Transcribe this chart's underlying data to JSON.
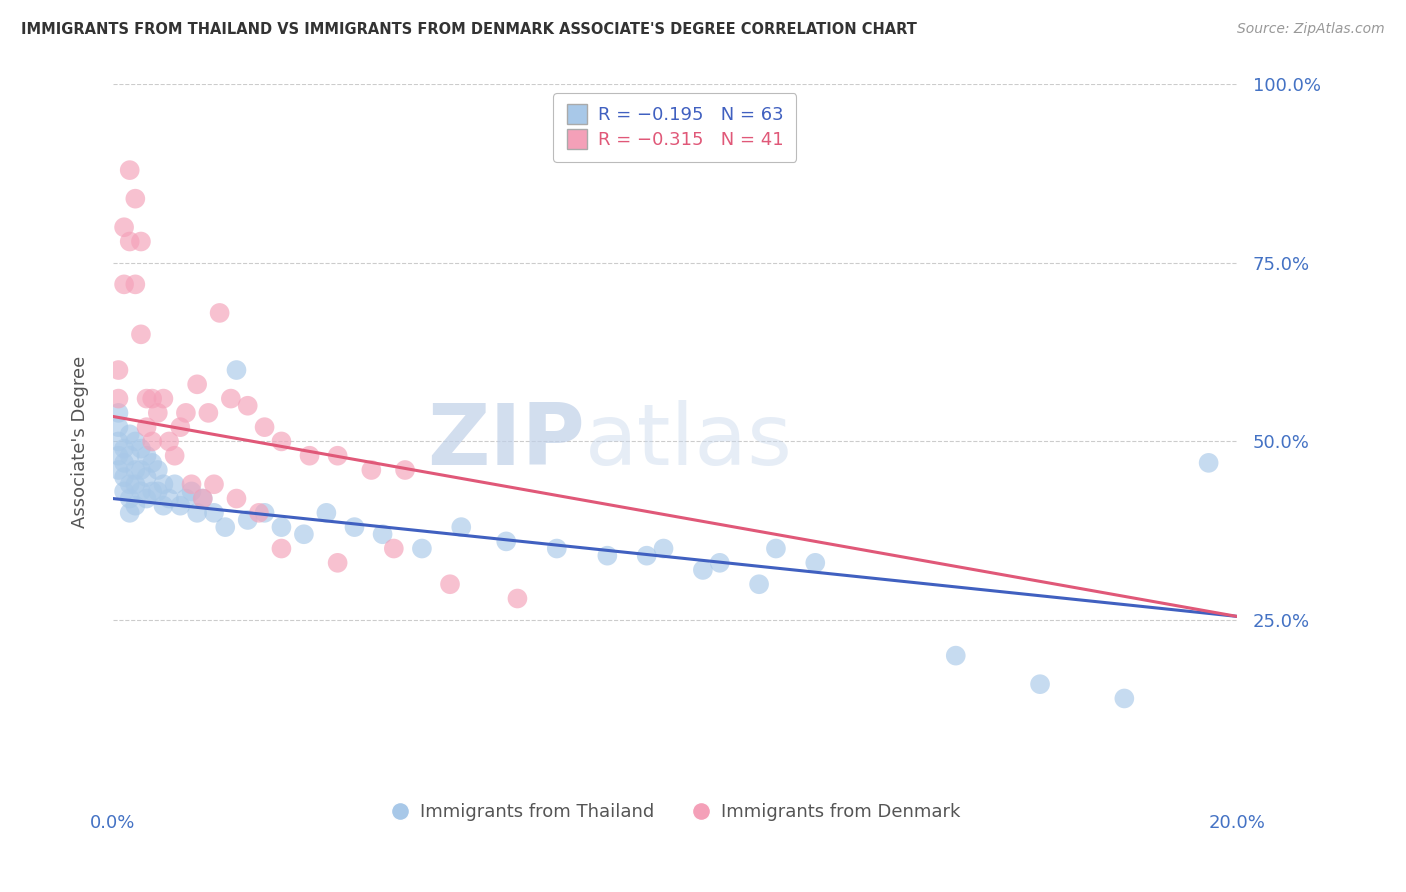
{
  "title": "IMMIGRANTS FROM THAILAND VS IMMIGRANTS FROM DENMARK ASSOCIATE'S DEGREE CORRELATION CHART",
  "source_text": "Source: ZipAtlas.com",
  "ylabel": "Associate's Degree",
  "xmin": 0.0,
  "xmax": 0.2,
  "ymin": 0.0,
  "ymax": 1.0,
  "yticks": [
    0.25,
    0.5,
    0.75,
    1.0
  ],
  "ytick_labels": [
    "25.0%",
    "50.0%",
    "75.0%",
    "100.0%"
  ],
  "xticks": [
    0.0,
    0.04,
    0.08,
    0.12,
    0.16,
    0.2
  ],
  "watermark_zip": "ZIP",
  "watermark_atlas": "atlas",
  "blue_color": "#a8c8e8",
  "pink_color": "#f4a0b8",
  "blue_line_color": "#4060c0",
  "pink_line_color": "#e05878",
  "title_color": "#333333",
  "axis_label_color": "#555555",
  "tick_label_color": "#4472c4",
  "grid_color": "#cccccc",
  "background_color": "#ffffff",
  "blue_line_x0": 0.0,
  "blue_line_x1": 0.2,
  "blue_line_y0": 0.42,
  "blue_line_y1": 0.255,
  "pink_line_x0": 0.0,
  "pink_line_x1": 0.2,
  "pink_line_y0": 0.535,
  "pink_line_y1": 0.255,
  "thailand_x": [
    0.001,
    0.001,
    0.001,
    0.001,
    0.001,
    0.002,
    0.002,
    0.002,
    0.002,
    0.003,
    0.003,
    0.003,
    0.003,
    0.003,
    0.004,
    0.004,
    0.004,
    0.004,
    0.005,
    0.005,
    0.005,
    0.006,
    0.006,
    0.006,
    0.007,
    0.007,
    0.008,
    0.008,
    0.009,
    0.009,
    0.01,
    0.011,
    0.012,
    0.013,
    0.014,
    0.015,
    0.016,
    0.018,
    0.02,
    0.022,
    0.024,
    0.027,
    0.03,
    0.034,
    0.038,
    0.043,
    0.048,
    0.055,
    0.062,
    0.07,
    0.079,
    0.088,
    0.098,
    0.108,
    0.118,
    0.095,
    0.105,
    0.115,
    0.125,
    0.15,
    0.165,
    0.18,
    0.195
  ],
  "thailand_y": [
    0.5,
    0.48,
    0.46,
    0.52,
    0.54,
    0.49,
    0.47,
    0.45,
    0.43,
    0.51,
    0.48,
    0.44,
    0.42,
    0.4,
    0.5,
    0.46,
    0.44,
    0.41,
    0.49,
    0.46,
    0.43,
    0.48,
    0.45,
    0.42,
    0.47,
    0.43,
    0.46,
    0.43,
    0.44,
    0.41,
    0.42,
    0.44,
    0.41,
    0.42,
    0.43,
    0.4,
    0.42,
    0.4,
    0.38,
    0.6,
    0.39,
    0.4,
    0.38,
    0.37,
    0.4,
    0.38,
    0.37,
    0.35,
    0.38,
    0.36,
    0.35,
    0.34,
    0.35,
    0.33,
    0.35,
    0.34,
    0.32,
    0.3,
    0.33,
    0.2,
    0.16,
    0.14,
    0.47
  ],
  "denmark_x": [
    0.001,
    0.001,
    0.002,
    0.002,
    0.003,
    0.003,
    0.004,
    0.004,
    0.005,
    0.005,
    0.006,
    0.006,
    0.007,
    0.007,
    0.008,
    0.009,
    0.01,
    0.011,
    0.012,
    0.013,
    0.015,
    0.017,
    0.019,
    0.021,
    0.024,
    0.027,
    0.03,
    0.035,
    0.04,
    0.046,
    0.052,
    0.014,
    0.016,
    0.018,
    0.022,
    0.026,
    0.03,
    0.04,
    0.05,
    0.06,
    0.072
  ],
  "denmark_y": [
    0.6,
    0.56,
    0.8,
    0.72,
    0.88,
    0.78,
    0.84,
    0.72,
    0.78,
    0.65,
    0.56,
    0.52,
    0.56,
    0.5,
    0.54,
    0.56,
    0.5,
    0.48,
    0.52,
    0.54,
    0.58,
    0.54,
    0.68,
    0.56,
    0.55,
    0.52,
    0.5,
    0.48,
    0.48,
    0.46,
    0.46,
    0.44,
    0.42,
    0.44,
    0.42,
    0.4,
    0.35,
    0.33,
    0.35,
    0.3,
    0.28
  ]
}
